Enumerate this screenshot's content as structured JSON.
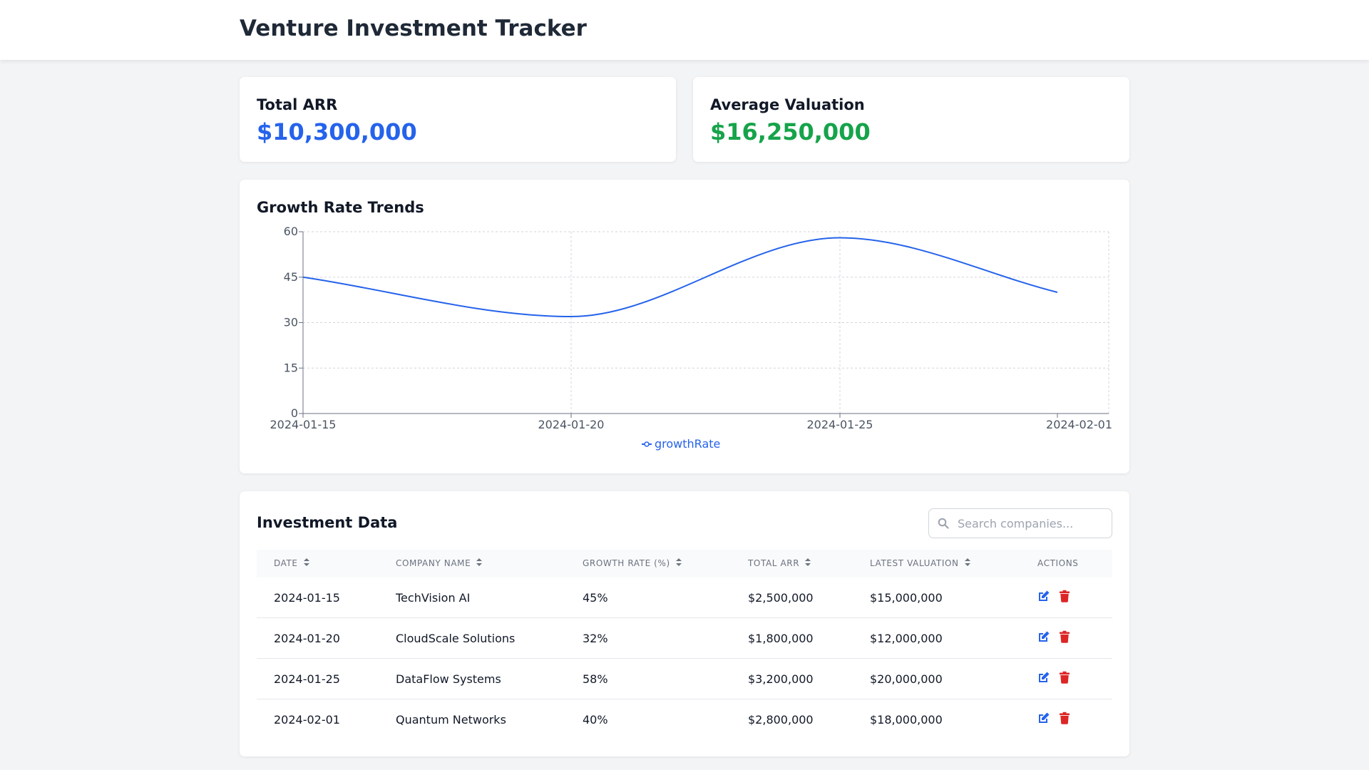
{
  "app": {
    "title": "Venture Investment Tracker"
  },
  "stats": {
    "total_arr_label": "Total ARR",
    "total_arr_value": "$10,300,000",
    "total_arr_color": "#2563eb",
    "avg_valuation_label": "Average Valuation",
    "avg_valuation_value": "$16,250,000",
    "avg_valuation_color": "#16a34a"
  },
  "chart": {
    "title": "Growth Rate Trends"
  },
  "chart_data": {
    "type": "line",
    "x": [
      "2024-01-15",
      "2024-01-20",
      "2024-01-25",
      "2024-02-01"
    ],
    "series": [
      {
        "name": "growthRate",
        "values": [
          45,
          32,
          58,
          40
        ],
        "color": "#2563eb"
      }
    ],
    "ylim": [
      0,
      60
    ],
    "yticks": [
      0,
      15,
      30,
      45,
      60
    ],
    "grid": true,
    "legend": "bottom-center",
    "line_style": "smooth"
  },
  "table": {
    "title": "Investment Data",
    "search_placeholder": "Search companies...",
    "columns": [
      "DATE",
      "COMPANY NAME",
      "GROWTH RATE (%)",
      "TOTAL ARR",
      "LATEST VALUATION",
      "ACTIONS"
    ],
    "rows": [
      [
        "2024-01-15",
        "TechVision AI",
        "45%",
        "$2,500,000",
        "$15,000,000"
      ],
      [
        "2024-01-20",
        "CloudScale Solutions",
        "32%",
        "$1,800,000",
        "$12,000,000"
      ],
      [
        "2024-01-25",
        "DataFlow Systems",
        "58%",
        "$3,200,000",
        "$20,000,000"
      ],
      [
        "2024-02-01",
        "Quantum Networks",
        "40%",
        "$2,800,000",
        "$18,000,000"
      ]
    ],
    "icons": {
      "edit": "edit-icon",
      "delete": "trash-icon",
      "sort": "sort-icon",
      "search": "search-icon"
    },
    "edit_color": "#2563eb",
    "delete_color": "#dc2626"
  }
}
